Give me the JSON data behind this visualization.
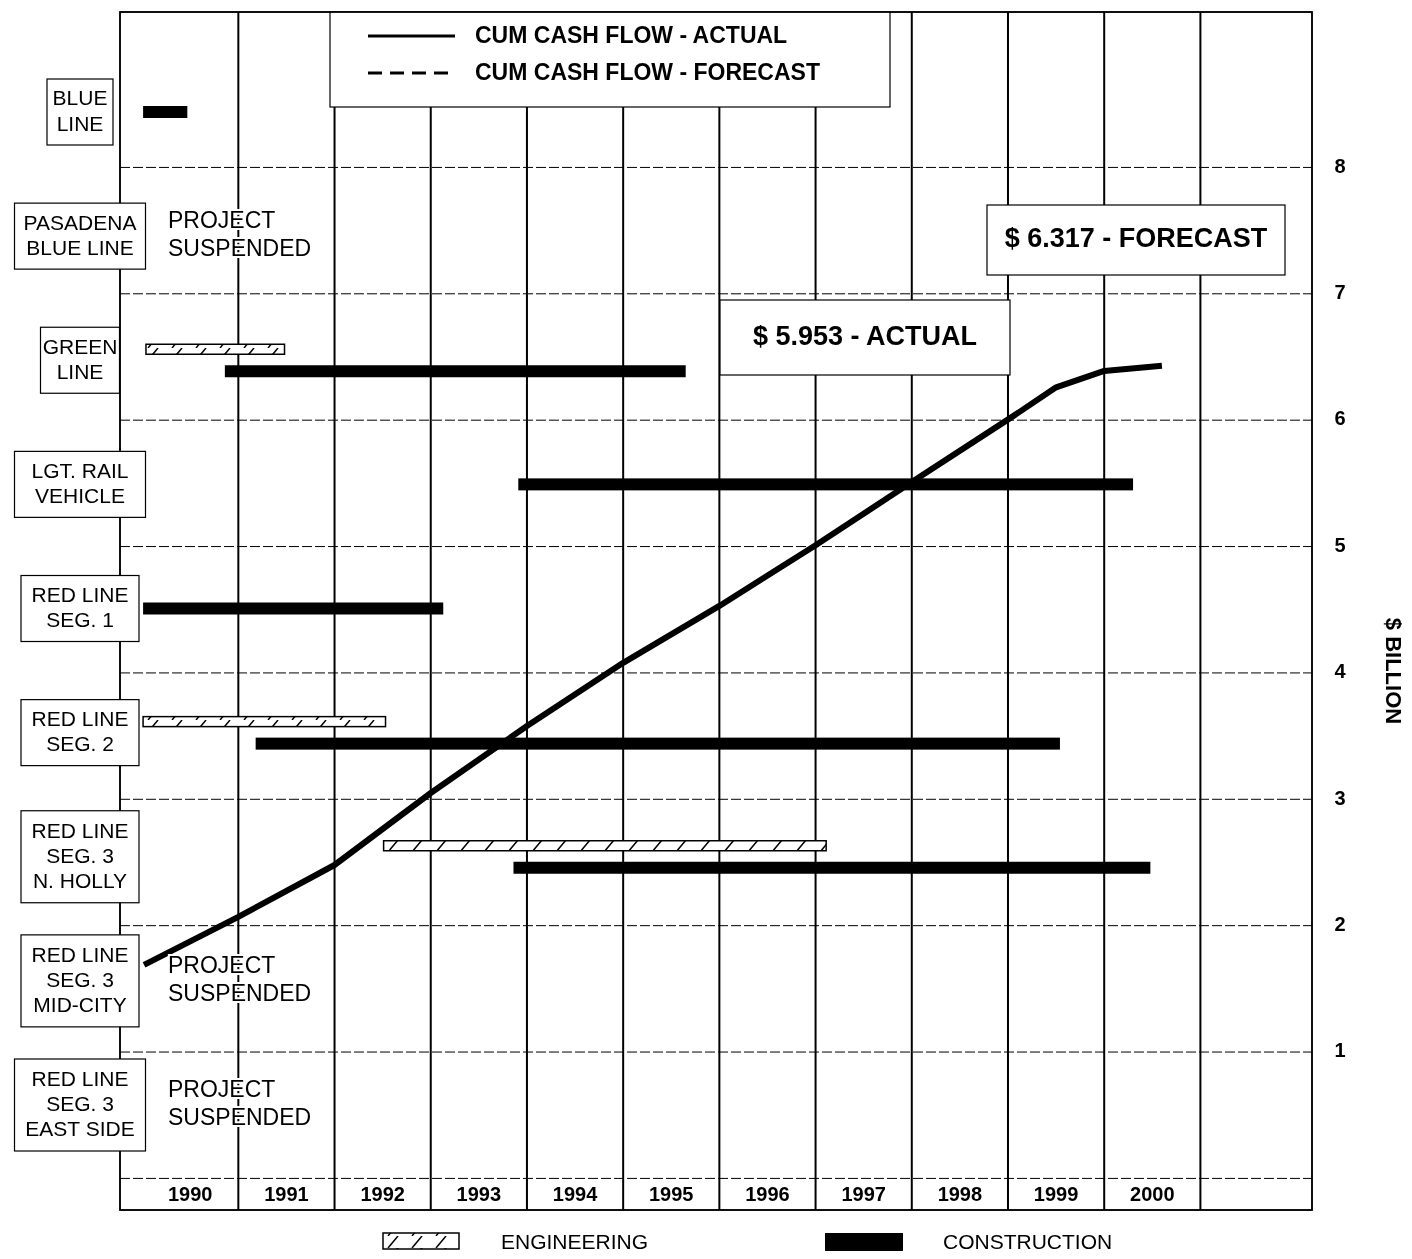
{
  "chart_data": [
    {
      "type": "bar",
      "orientation": "horizontal",
      "categories": [
        "BLUE\nLINE",
        "PASADENA\nBLUE LINE",
        "GREEN\nLINE",
        "LGT. RAIL\nVEHICLE",
        "RED LINE\nSEG. 1",
        "RED LINE\nSEG. 2",
        "RED LINE\nSEG. 3\nN. HOLLY",
        "RED LINE\nSEG. 3\nMID-CITY",
        "RED LINE\nSEG. 3\nEAST SIDE"
      ],
      "series": [
        {
          "name": "ENGINEERING",
          "color": "#000000",
          "base": [
            null,
            null,
            1990.04,
            null,
            null,
            1990.01,
            1992.51,
            null,
            null
          ],
          "values": [
            null,
            null,
            1.44,
            null,
            null,
            2.52,
            4.6,
            null,
            null
          ]
        },
        {
          "name": "CONSTRUCTION",
          "color": "#000000",
          "base": [
            1990.01,
            null,
            1990.86,
            1993.91,
            1990.01,
            1991.18,
            1993.86,
            null,
            null
          ],
          "values": [
            0.46,
            null,
            4.79,
            6.39,
            3.12,
            8.36,
            6.62,
            null,
            null
          ]
        }
      ],
      "xlim": [
        1989.77,
        2002.16
      ],
      "legend": "bottom",
      "annotations": [
        "PROJECT\nSUSPENDED",
        "PROJECT\nSUSPENDED",
        "PROJECT\nSUSPENDED"
      ]
    },
    {
      "type": "line",
      "ylabel": "$ BILLION",
      "series": [
        {
          "name": "CUM CASH FLOW - ACTUAL",
          "color": "#000000",
          "line_style": "solid",
          "x": [
            1990.02,
            1991,
            1992,
            1993,
            1994,
            1995,
            1996,
            1997,
            1998,
            1999.05,
            1999.5,
            2000,
            2000.6
          ],
          "values": [
            1.69,
            2.07,
            2.48,
            3.05,
            3.58,
            4.08,
            4.53,
            5.01,
            5.51,
            6.03,
            6.26,
            6.39,
            6.43
          ]
        },
        {
          "name": "CUM CASH FLOW - FORECAST",
          "color": "#000000",
          "line_style": "dashed"
        }
      ],
      "xlim": [
        1989.77,
        2002.16
      ],
      "xticks": [
        {
          "value": 1990.5,
          "label": "1990"
        },
        {
          "value": 1991.5,
          "label": "1991"
        },
        {
          "value": 1992.5,
          "label": "1992"
        },
        {
          "value": 1993.5,
          "label": "1993"
        },
        {
          "value": 1994.5,
          "label": "1994"
        },
        {
          "value": 1995.5,
          "label": "1995"
        },
        {
          "value": 1996.5,
          "label": "1996"
        },
        {
          "value": 1997.5,
          "label": "1997"
        },
        {
          "value": 1998.5,
          "label": "1998"
        },
        {
          "value": 1999.5,
          "label": "1999"
        },
        {
          "value": 2000.5,
          "label": "2000"
        },
        {
          "value": 1991,
          "label": null
        },
        {
          "value": 1992,
          "label": null
        },
        {
          "value": 1993,
          "label": null
        },
        {
          "value": 1994,
          "label": null
        },
        {
          "value": 1995,
          "label": null
        },
        {
          "value": 1996,
          "label": null
        },
        {
          "value": 1997,
          "label": null
        },
        {
          "value": 1998,
          "label": null
        },
        {
          "value": 1999,
          "label": null
        },
        {
          "value": 2000,
          "label": null
        },
        {
          "value": 2001,
          "label": null
        }
      ],
      "ylim": [
        -0.25,
        9.23
      ],
      "yticks": [
        {
          "value": 0,
          "label": null
        },
        1,
        2,
        3,
        4,
        5,
        6,
        7,
        8
      ],
      "grid": true,
      "legend": "top",
      "marker": "none",
      "annotations": [
        "$ 6.317 - FORECAST",
        "$ 5.953 - ACTUAL"
      ]
    }
  ]
}
